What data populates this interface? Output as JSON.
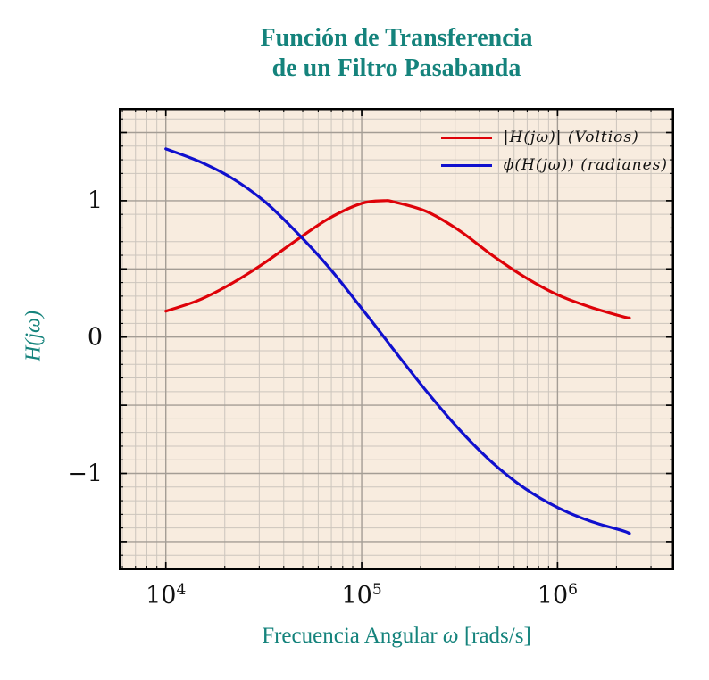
{
  "theme": {
    "accent": "#15837C",
    "plot_background": "#F8ECDF",
    "grid_minor": "#CCC5BD",
    "grid_major": "#A49D95",
    "frame": "#000000"
  },
  "title": {
    "line1": "Función de Transferencia",
    "line2": "de un Filtro Pasabanda"
  },
  "axes": {
    "x_label_prefix": "Frecuencia Angular ",
    "x_label_symbol": "ω",
    "x_label_suffix": " [rads/s]",
    "y_label": "H(jω)"
  },
  "legend": [
    {
      "label": "|H(jω)| (Voltios)",
      "color": "#DE0209"
    },
    {
      "label": "ϕ(H(jω)) (radianes)",
      "color": "#1010CE"
    }
  ],
  "chart_data": {
    "type": "line",
    "title": "Función de Transferencia de un Filtro Pasabanda",
    "xlabel": "Frecuencia Angular ω [rads/s]",
    "ylabel": "H(jω)",
    "x_scale": "log",
    "xlim": [
      5750,
      3940000
    ],
    "ylim": [
      -1.71,
      1.68
    ],
    "grid": "major+minor",
    "legend_position": "upper right",
    "x_major_ticks": [
      {
        "value": 10000,
        "base": "10",
        "exp": "4"
      },
      {
        "value": 100000,
        "base": "10",
        "exp": "5"
      },
      {
        "value": 1000000,
        "base": "10",
        "exp": "6"
      }
    ],
    "y_major_ticks": [
      {
        "value": 1,
        "label": "1"
      },
      {
        "value": 0,
        "label": "0"
      },
      {
        "value": -1,
        "label": "−1"
      }
    ],
    "y_minor_step": 0.1,
    "y_major_step": 0.5,
    "filter_model": {
      "center_frequency_rad_s": 130000,
      "peak_gain_volts": 1.0
    },
    "x": [
      10000,
      14700,
      21500,
      31600,
      46400,
      68100,
      100000,
      130000,
      147000,
      215000,
      316000,
      464000,
      681000,
      1000000,
      1470000,
      2150000,
      2330000
    ],
    "series": [
      {
        "name": "|H(jω)| (Voltios)",
        "color": "#DE0209",
        "values": [
          0.19,
          0.27,
          0.39,
          0.54,
          0.71,
          0.87,
          0.98,
          1.0,
          0.99,
          0.92,
          0.78,
          0.6,
          0.44,
          0.31,
          0.22,
          0.15,
          0.14
        ]
      },
      {
        "name": "ϕ(H(jω)) (radianes)",
        "color": "#1010CE",
        "values": [
          1.38,
          1.29,
          1.17,
          1.0,
          0.77,
          0.51,
          0.21,
          0.0,
          -0.1,
          -0.4,
          -0.68,
          -0.92,
          -1.11,
          -1.25,
          -1.35,
          -1.42,
          -1.44
        ]
      }
    ]
  }
}
